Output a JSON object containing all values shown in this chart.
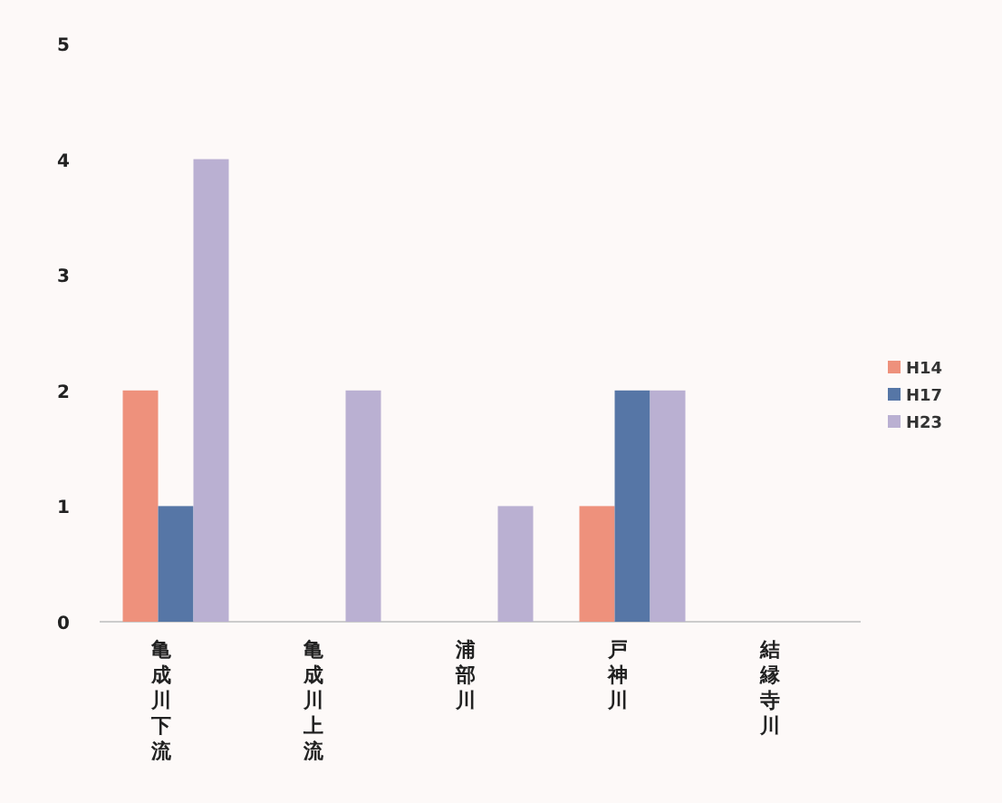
{
  "chart_data": {
    "type": "bar",
    "categories": [
      "亀成川下流",
      "亀成川上流",
      "浦部川",
      "戸神川",
      "結縁寺川"
    ],
    "series": [
      {
        "name": "H14",
        "color": "#ee917c",
        "values": [
          2,
          0,
          0,
          1,
          0
        ]
      },
      {
        "name": "H17",
        "color": "#5676a6",
        "values": [
          1,
          0,
          0,
          2,
          0
        ]
      },
      {
        "name": "H23",
        "color": "#bab0d2",
        "values": [
          4,
          2,
          1,
          2,
          0
        ]
      }
    ],
    "ylim": [
      0,
      5
    ],
    "yticks": [
      0,
      1,
      2,
      3,
      4,
      5
    ],
    "legend": "right"
  }
}
